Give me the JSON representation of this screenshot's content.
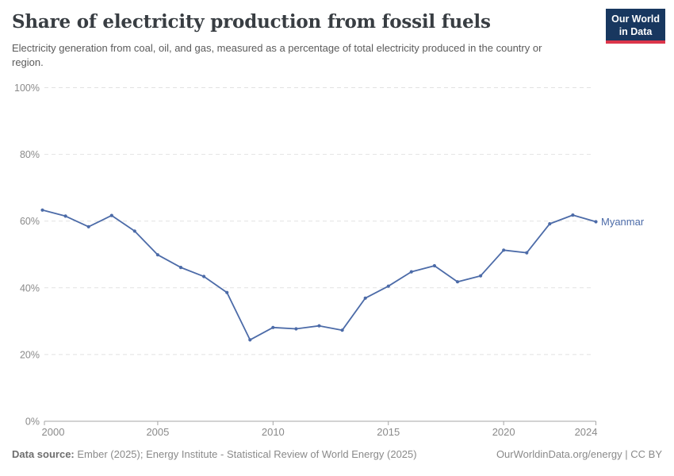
{
  "header": {
    "title": "Share of electricity production from fossil fuels",
    "subtitle": "Electricity generation from coal, oil, and gas, measured as a percentage of total electricity produced in the country or region.",
    "logo": {
      "line1": "Our World",
      "line2": "in Data"
    }
  },
  "chart_data": {
    "type": "line",
    "title": "Share of electricity production from fossil fuels",
    "xlabel": "",
    "ylabel": "",
    "ylim": [
      0,
      100
    ],
    "grid": "horizontal dashed",
    "legend_position": "end-of-line label",
    "yticks": [
      0,
      20,
      40,
      60,
      80,
      100
    ],
    "ytick_labels": [
      "0%",
      "20%",
      "40%",
      "60%",
      "80%",
      "100%"
    ],
    "xticks": [
      2000,
      2005,
      2010,
      2015,
      2020,
      2024
    ],
    "xtick_labels": [
      "2000",
      "2005",
      "2010",
      "2015",
      "2020",
      "2024"
    ],
    "x": [
      2000,
      2001,
      2002,
      2003,
      2004,
      2005,
      2006,
      2007,
      2008,
      2009,
      2010,
      2011,
      2012,
      2013,
      2014,
      2015,
      2016,
      2017,
      2018,
      2019,
      2020,
      2021,
      2022,
      2023,
      2024
    ],
    "series": [
      {
        "name": "Myanmar",
        "color": "#4c6ba8",
        "values": [
          63.3,
          61.5,
          58.3,
          61.7,
          57.0,
          49.9,
          46.1,
          43.4,
          38.6,
          24.4,
          28.1,
          27.7,
          28.6,
          27.3,
          36.9,
          40.5,
          44.8,
          46.6,
          41.8,
          43.6,
          51.3,
          50.5,
          59.2,
          61.8,
          59.8
        ]
      }
    ]
  },
  "footer": {
    "datasource_label": "Data source:",
    "datasource_text": "Ember (2025); Energy Institute - Statistical Review of World Energy (2025)",
    "rights": "OurWorldinData.org/energy | CC BY"
  },
  "colors": {
    "series_line": "#4c6ba8",
    "grid_line": "#e2e2e2",
    "axis_line": "#a5a5a5",
    "tick_text": "#8a8a8a",
    "logo_background": "#18375f",
    "logo_stripe": "#dc354a",
    "title_text": "#383d42",
    "subtitle_text": "#5b5b5b"
  }
}
